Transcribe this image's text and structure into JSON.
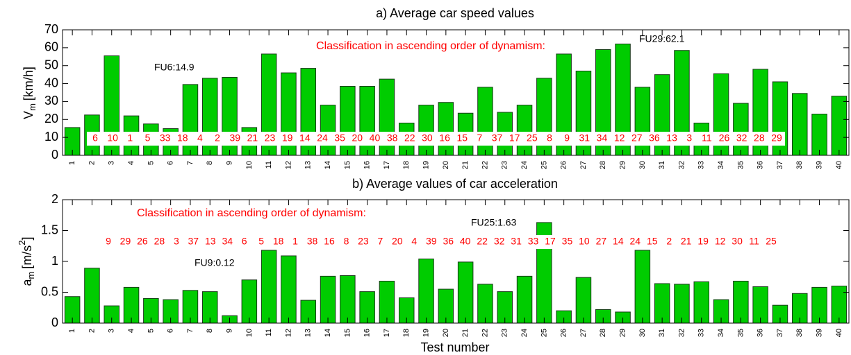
{
  "chart_data": [
    {
      "type": "bar",
      "title": "a) Average car speed values",
      "ylabel": [
        "V",
        "m",
        "[km/h]"
      ],
      "categories": [
        "1",
        "2",
        "3",
        "4",
        "5",
        "6",
        "7",
        "8",
        "9",
        "10",
        "11",
        "12",
        "13",
        "14",
        "15",
        "16",
        "17",
        "18",
        "19",
        "20",
        "21",
        "22",
        "23",
        "24",
        "25",
        "26",
        "27",
        "28",
        "29",
        "30",
        "31",
        "32",
        "33",
        "34",
        "35",
        "36",
        "37",
        "38",
        "39",
        "40"
      ],
      "values": [
        15.5,
        22.5,
        55.5,
        22,
        17.5,
        14.9,
        39.5,
        43,
        43.5,
        15.5,
        56.5,
        46,
        48.5,
        28,
        38.5,
        38.5,
        42.5,
        18,
        28,
        29.5,
        23.5,
        38,
        24,
        28,
        43,
        56.5,
        47,
        59,
        62.1,
        38,
        45,
        58.5,
        18,
        45.5,
        29,
        48,
        41,
        34.5,
        23,
        33
      ],
      "color": "#00cc00",
      "ylim": [
        0,
        70
      ],
      "yticks": [
        0,
        10,
        20,
        30,
        40,
        50,
        60,
        70
      ],
      "heading": "Classification in ascending order of dynamism:",
      "heading_color": "#ff0000",
      "ranking": [
        6,
        10,
        1,
        5,
        33,
        18,
        4,
        2,
        39,
        21,
        23,
        19,
        14,
        24,
        35,
        20,
        40,
        38,
        22,
        30,
        16,
        15,
        7,
        37,
        17,
        25,
        8,
        9,
        31,
        34,
        12,
        27,
        36,
        13,
        3,
        11,
        26,
        32,
        28,
        29
      ],
      "annotations": [
        "FU6:14.9",
        "FU29:62.1"
      ]
    },
    {
      "type": "bar",
      "title": "b) Average values of car acceleration",
      "ylabel": [
        "a",
        "m",
        "[m/s",
        "2",
        "]"
      ],
      "xlabel": "Test number",
      "categories": [
        "1",
        "2",
        "3",
        "4",
        "5",
        "6",
        "7",
        "8",
        "9",
        "10",
        "11",
        "12",
        "13",
        "14",
        "15",
        "16",
        "17",
        "18",
        "19",
        "20",
        "21",
        "22",
        "23",
        "24",
        "25",
        "26",
        "27",
        "28",
        "29",
        "30",
        "31",
        "32",
        "33",
        "34",
        "35",
        "36",
        "37",
        "38",
        "39",
        "40"
      ],
      "values": [
        0.43,
        0.89,
        0.28,
        0.58,
        0.4,
        0.38,
        0.53,
        0.51,
        0.12,
        0.7,
        1.18,
        1.09,
        0.37,
        0.76,
        0.77,
        0.51,
        0.68,
        0.41,
        1.04,
        0.55,
        0.99,
        0.63,
        0.51,
        0.76,
        1.63,
        0.2,
        0.74,
        0.22,
        0.18,
        1.18,
        0.64,
        0.63,
        0.67,
        0.38,
        0.68,
        0.59,
        0.29,
        0.48,
        0.58,
        0.6
      ],
      "color": "#00cc00",
      "ylim": [
        0,
        2
      ],
      "yticks": [
        0,
        0.5,
        1,
        1.5,
        2
      ],
      "heading": "Classification in ascending order of dynamism:",
      "heading_color": "#ff0000",
      "ranking": [
        9,
        29,
        26,
        28,
        3,
        37,
        13,
        34,
        6,
        5,
        18,
        1,
        38,
        16,
        8,
        23,
        7,
        20,
        4,
        39,
        36,
        40,
        22,
        32,
        31,
        33,
        17,
        35,
        10,
        27,
        14,
        24,
        15,
        2,
        21,
        19,
        12,
        30,
        11,
        25
      ],
      "annotations": [
        "FU25:1.63",
        "FU9:0.12"
      ]
    }
  ]
}
